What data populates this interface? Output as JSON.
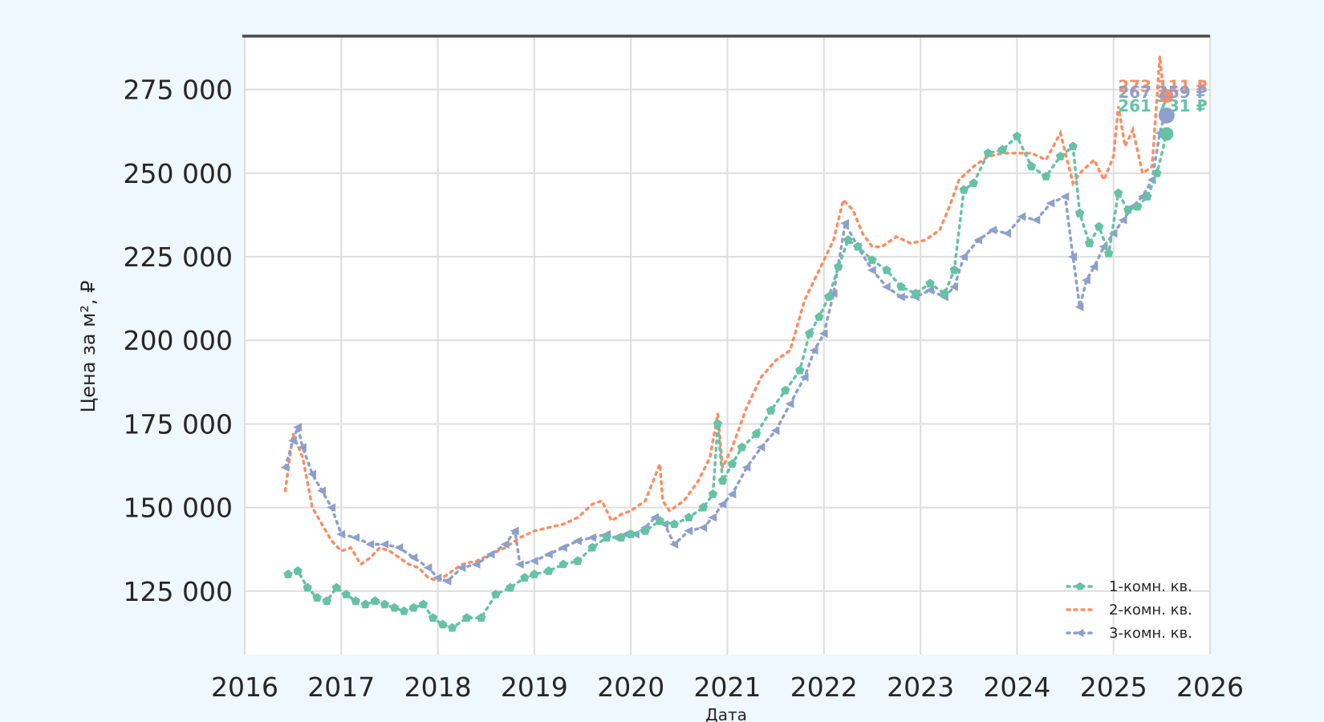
{
  "colors": {
    "background": "#eff7ff",
    "plot_background": "#ffffff",
    "grid": "#dedede",
    "top_rule": "#4a4a4a",
    "text": "#262626",
    "series_1k": "#66c2a5",
    "series_2k": "#fc8d62",
    "series_3k": "#8da0cb"
  },
  "chart_data": {
    "type": "line",
    "title": "",
    "xlabel": "Дата",
    "ylabel": "Цена за м², ₽",
    "xlim": [
      2016.0,
      2026.0
    ],
    "ylim": [
      106000,
      291000
    ],
    "grid": true,
    "legend_position": "bottom-right",
    "x_ticks": [
      2016,
      2017,
      2018,
      2019,
      2020,
      2021,
      2022,
      2023,
      2024,
      2025,
      2026
    ],
    "x_tick_labels": [
      "2016",
      "2017",
      "2018",
      "2019",
      "2020",
      "2021",
      "2022",
      "2023",
      "2024",
      "2025",
      "2026"
    ],
    "y_ticks": [
      125000,
      150000,
      175000,
      200000,
      225000,
      250000,
      275000
    ],
    "y_tick_labels": [
      "125 000",
      "150 000",
      "175 000",
      "200 000",
      "225 000",
      "250 000",
      "275 000"
    ],
    "series": [
      {
        "name": "1-комн. кв.",
        "color": "#66c2a5",
        "marker": "pentagon",
        "line_style": "dotted",
        "x": [
          2016.45,
          2016.55,
          2016.65,
          2016.75,
          2016.85,
          2016.95,
          2017.05,
          2017.15,
          2017.25,
          2017.35,
          2017.45,
          2017.55,
          2017.65,
          2017.75,
          2017.85,
          2017.95,
          2018.05,
          2018.15,
          2018.3,
          2018.45,
          2018.6,
          2018.75,
          2018.9,
          2019.0,
          2019.15,
          2019.3,
          2019.45,
          2019.6,
          2019.75,
          2019.9,
          2020.0,
          2020.15,
          2020.3,
          2020.45,
          2020.6,
          2020.75,
          2020.85,
          2020.9,
          2020.95,
          2021.05,
          2021.15,
          2021.3,
          2021.45,
          2021.6,
          2021.75,
          2021.85,
          2021.95,
          2022.05,
          2022.15,
          2022.25,
          2022.35,
          2022.5,
          2022.65,
          2022.8,
          2022.95,
          2023.1,
          2023.25,
          2023.35,
          2023.45,
          2023.55,
          2023.7,
          2023.85,
          2024.0,
          2024.15,
          2024.3,
          2024.45,
          2024.58,
          2024.65,
          2024.75,
          2024.85,
          2024.95,
          2025.05,
          2025.15,
          2025.25,
          2025.35,
          2025.45,
          2025.55
        ],
        "y": [
          130000,
          131000,
          126000,
          123000,
          122000,
          126000,
          124000,
          122000,
          121000,
          122000,
          121000,
          120000,
          119000,
          120000,
          121000,
          117000,
          115000,
          114000,
          117000,
          117000,
          124000,
          126000,
          129000,
          130000,
          131000,
          133000,
          134000,
          138000,
          141000,
          141000,
          142000,
          143000,
          146000,
          145000,
          147000,
          150000,
          154000,
          175000,
          158000,
          163000,
          168000,
          172000,
          179000,
          185000,
          191000,
          202000,
          207000,
          213000,
          222000,
          230000,
          228000,
          224000,
          221000,
          216000,
          214000,
          217000,
          214000,
          221000,
          245000,
          247000,
          256000,
          257000,
          261000,
          252000,
          249000,
          255000,
          258000,
          238000,
          229000,
          234000,
          226000,
          244000,
          239000,
          240000,
          243000,
          250000,
          261731
        ]
      },
      {
        "name": "2-комн. кв.",
        "color": "#fc8d62",
        "marker": "none",
        "line_style": "dotted",
        "x": [
          2016.42,
          2016.5,
          2016.6,
          2016.7,
          2016.8,
          2016.9,
          2017.0,
          2017.1,
          2017.2,
          2017.3,
          2017.4,
          2017.5,
          2017.6,
          2017.7,
          2017.8,
          2017.9,
          2018.0,
          2018.1,
          2018.25,
          2018.4,
          2018.55,
          2018.7,
          2018.85,
          2019.0,
          2019.15,
          2019.3,
          2019.45,
          2019.6,
          2019.7,
          2019.8,
          2019.9,
          2020.0,
          2020.15,
          2020.3,
          2020.33,
          2020.4,
          2020.55,
          2020.7,
          2020.82,
          2020.9,
          2020.95,
          2021.05,
          2021.2,
          2021.35,
          2021.5,
          2021.65,
          2021.8,
          2021.95,
          2022.1,
          2022.2,
          2022.3,
          2022.4,
          2022.5,
          2022.6,
          2022.75,
          2022.9,
          2023.05,
          2023.2,
          2023.3,
          2023.4,
          2023.55,
          2023.7,
          2023.85,
          2024.0,
          2024.15,
          2024.3,
          2024.45,
          2024.58,
          2024.65,
          2024.8,
          2024.9,
          2025.0,
          2025.05,
          2025.12,
          2025.2,
          2025.3,
          2025.4,
          2025.48,
          2025.52
        ],
        "y": [
          155000,
          172000,
          165000,
          150000,
          145000,
          140000,
          137000,
          138000,
          133000,
          135000,
          138000,
          137000,
          135000,
          133000,
          132000,
          129000,
          128000,
          130000,
          133000,
          134000,
          136000,
          138000,
          141000,
          143000,
          144000,
          145000,
          147000,
          151000,
          152000,
          146000,
          148000,
          149000,
          152000,
          163000,
          152000,
          149000,
          152000,
          158000,
          165000,
          178000,
          162000,
          168000,
          180000,
          189000,
          194000,
          197000,
          212000,
          221000,
          230000,
          242000,
          239000,
          232000,
          228000,
          228000,
          231000,
          229000,
          230000,
          233000,
          240000,
          248000,
          252000,
          255000,
          256000,
          256000,
          256000,
          254000,
          262000,
          247000,
          250000,
          254000,
          248000,
          255000,
          270000,
          258000,
          263000,
          250000,
          252000,
          285000,
          273111
        ]
      },
      {
        "name": "3-комн. кв.",
        "color": "#8da0cb",
        "marker": "triangle-left",
        "line_style": "dotted",
        "x": [
          2016.42,
          2016.5,
          2016.55,
          2016.6,
          2016.7,
          2016.8,
          2016.9,
          2017.0,
          2017.15,
          2017.3,
          2017.45,
          2017.6,
          2017.75,
          2017.9,
          2018.0,
          2018.1,
          2018.25,
          2018.4,
          2018.55,
          2018.7,
          2018.8,
          2018.85,
          2019.0,
          2019.15,
          2019.3,
          2019.45,
          2019.6,
          2019.75,
          2019.85,
          2019.95,
          2020.05,
          2020.15,
          2020.25,
          2020.35,
          2020.45,
          2020.6,
          2020.75,
          2020.85,
          2020.95,
          2021.05,
          2021.2,
          2021.35,
          2021.5,
          2021.65,
          2021.8,
          2021.9,
          2022.0,
          2022.1,
          2022.22,
          2022.35,
          2022.5,
          2022.65,
          2022.8,
          2022.95,
          2023.1,
          2023.25,
          2023.35,
          2023.45,
          2023.6,
          2023.75,
          2023.9,
          2024.05,
          2024.2,
          2024.35,
          2024.5,
          2024.58,
          2024.65,
          2024.72,
          2024.8,
          2024.9,
          2025.0,
          2025.1,
          2025.2,
          2025.3,
          2025.4,
          2025.48,
          2025.53
        ],
        "y": [
          162000,
          170000,
          174000,
          168000,
          160000,
          155000,
          150000,
          142000,
          141000,
          139000,
          139000,
          138000,
          135000,
          132000,
          129000,
          128000,
          132000,
          133000,
          136000,
          139000,
          143000,
          133000,
          134000,
          136000,
          138000,
          140000,
          141000,
          142000,
          141000,
          142000,
          142000,
          144000,
          147000,
          145000,
          139000,
          143000,
          144000,
          147000,
          151000,
          154000,
          162000,
          168000,
          173000,
          181000,
          189000,
          197000,
          202000,
          214000,
          235000,
          228000,
          221000,
          216000,
          213000,
          213000,
          215000,
          213000,
          216000,
          225000,
          230000,
          233000,
          232000,
          237000,
          236000,
          241000,
          243000,
          225000,
          210000,
          218000,
          222000,
          228000,
          232000,
          236000,
          240000,
          243000,
          248000,
          262000,
          267259
        ]
      }
    ],
    "end_labels": [
      {
        "series": "1-комн. кв.",
        "x": 2025.55,
        "y": 261731,
        "text": "261 731 ₽",
        "color": "#66c2a5"
      },
      {
        "series": "2-комн. кв.",
        "x": 2025.55,
        "y": 273111,
        "text": "273 111 ₽",
        "color": "#fc8d62"
      },
      {
        "series": "3-комн. кв.",
        "x": 2025.55,
        "y": 267259,
        "text": "267 259 ₽",
        "color": "#8da0cb"
      }
    ]
  }
}
